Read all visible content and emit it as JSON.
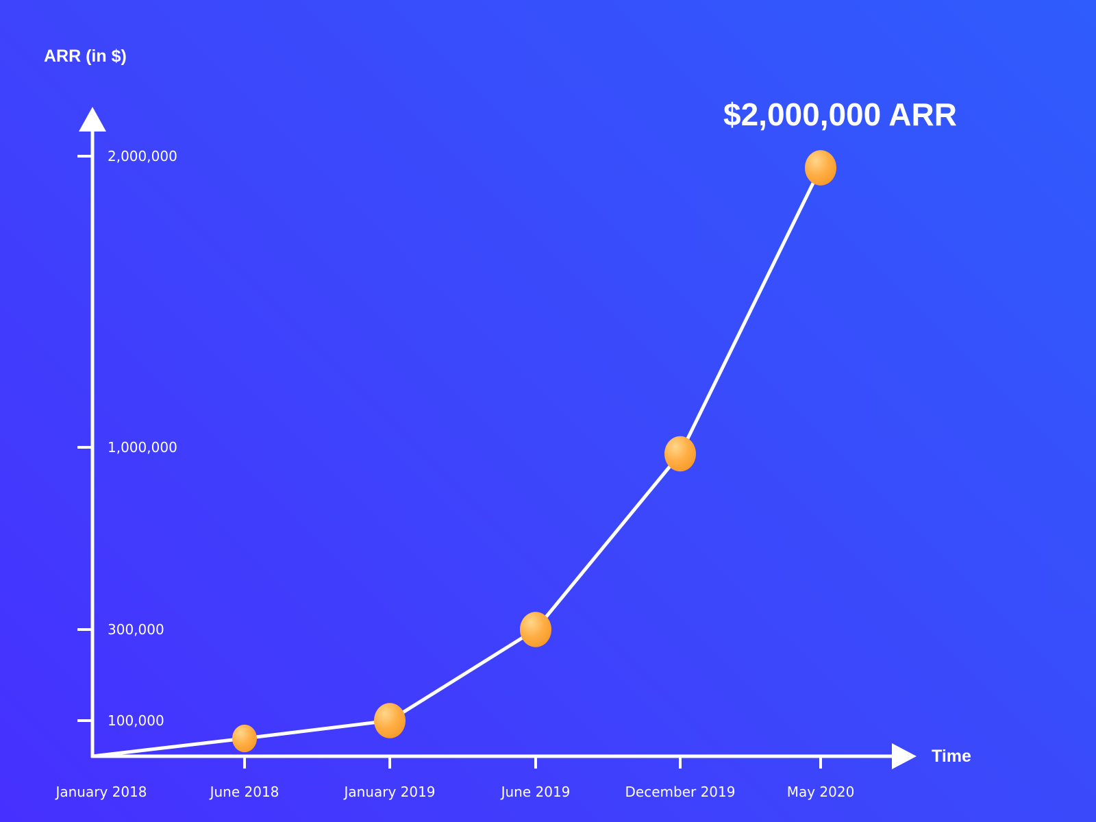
{
  "chart_data": {
    "type": "line",
    "ylabel": "ARR (in $)",
    "xlabel": "Time",
    "annotation": "$2,000,000 ARR",
    "x": [
      "January 2018",
      "June 2018",
      "January 2019",
      "June 2019",
      "December 2019",
      "May 2020"
    ],
    "y_ticks": [
      "100,000",
      "300,000",
      "1,000,000",
      "2,000,000"
    ],
    "y_tick_values": [
      100000,
      300000,
      1000000,
      2000000
    ],
    "series": [
      {
        "x": [
          "June 2018",
          "January 2019",
          "June 2019",
          "December 2019",
          "May 2020"
        ],
        "values": [
          50000,
          100000,
          300000,
          975000,
          1960000
        ]
      }
    ],
    "line_start_value": 0,
    "colors": {
      "line": "#ffffff",
      "point": "#ffa737",
      "point_highlight": "#ffd07a",
      "axis": "#ffffff"
    },
    "grid": false,
    "legend": "none"
  }
}
